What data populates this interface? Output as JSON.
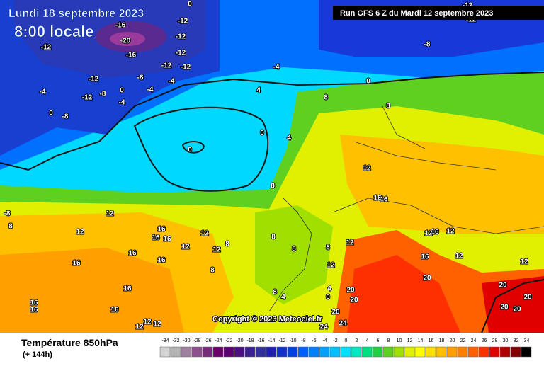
{
  "header": {
    "date": "Lundi 18 septembre 2023",
    "time": "8:00 locale",
    "run": "Run GFS 6 Z du Mardi 12 septembre 2023"
  },
  "map": {
    "copyright": "Copyright © 2023 Meteociel.fr",
    "contour_labels": [
      0,
      -12,
      -12,
      -12,
      -12,
      -12,
      -8,
      -4,
      -4,
      -16,
      -20,
      -16,
      -12,
      -12,
      -12,
      -8,
      -4,
      0,
      -8,
      0,
      -4,
      -4,
      0,
      4,
      8,
      8,
      0,
      4,
      0,
      8,
      12,
      16,
      16,
      12,
      12,
      16,
      16,
      16,
      12,
      12,
      8,
      12,
      16,
      16,
      16,
      16,
      16,
      16,
      16,
      12,
      12,
      12,
      8,
      8,
      8,
      8,
      12,
      12,
      4,
      0,
      8,
      4,
      20,
      20,
      20,
      24,
      24,
      12,
      16,
      12,
      12,
      16,
      20,
      12,
      20,
      20,
      20,
      20,
      -8,
      -12,
      -12,
      -8,
      8
    ]
  },
  "legend": {
    "title": "Température 850hPa",
    "lead": "(+ 144h)",
    "steps": [
      -34,
      -32,
      -30,
      -28,
      -26,
      -24,
      -22,
      -20,
      -18,
      -16,
      -14,
      -12,
      -10,
      -8,
      -6,
      -4,
      -2,
      0,
      2,
      4,
      6,
      8,
      10,
      12,
      14,
      16,
      18,
      20,
      22,
      24,
      26,
      28,
      30,
      32,
      34
    ],
    "colors": [
      "#d4d4d4",
      "#b4b4b4",
      "#a080a0",
      "#905090",
      "#7a2a7a",
      "#6a006a",
      "#5a0070",
      "#4b1080",
      "#3a2090",
      "#30309a",
      "#2020b0",
      "#1030c8",
      "#0040e0",
      "#0060ff",
      "#0080ff",
      "#00a0ff",
      "#00c0ff",
      "#00e0ff",
      "#00e8c0",
      "#00e080",
      "#20d040",
      "#60d020",
      "#a0e000",
      "#e0f000",
      "#ffff00",
      "#ffe000",
      "#ffc000",
      "#ffa000",
      "#ff8000",
      "#ff6000",
      "#ff3000",
      "#e00000",
      "#b00000",
      "#800000",
      "#000000"
    ]
  }
}
